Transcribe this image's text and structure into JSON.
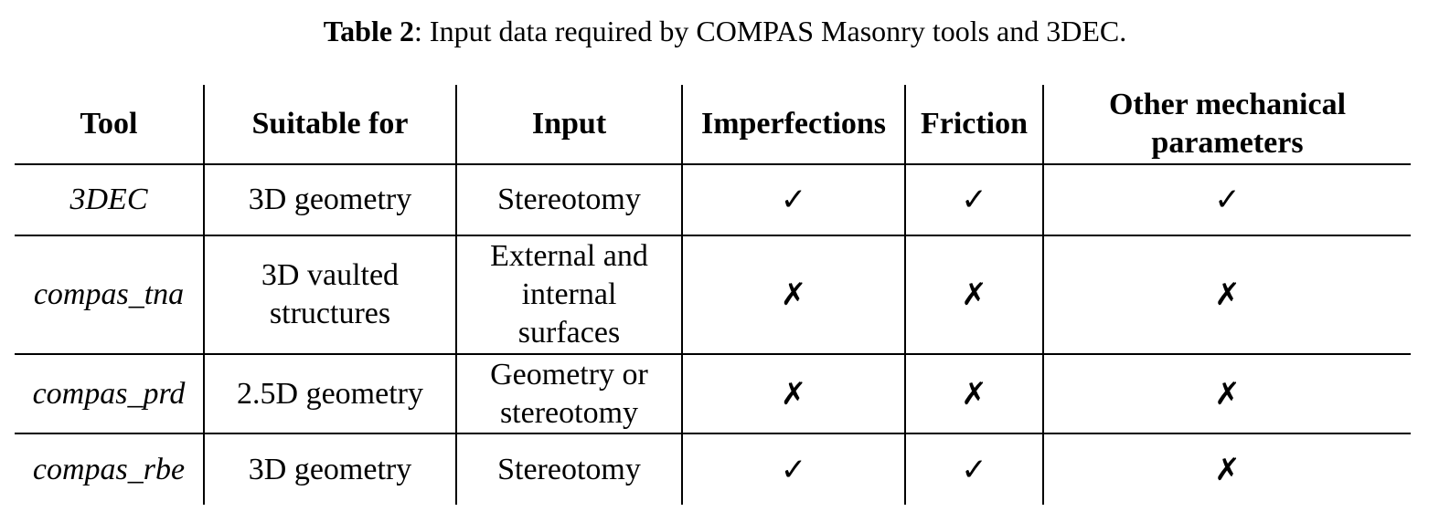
{
  "caption": {
    "label": "Table 2",
    "text": ": Input data required by COMPAS Masonry tools and 3DEC."
  },
  "table": {
    "headers": [
      "Tool",
      "Suitable for",
      "Input",
      "Imperfections",
      "Friction",
      "Other mechanical parameters"
    ],
    "rows": [
      {
        "tool": "3DEC",
        "suitable_for": "3D geometry",
        "input": "Stereotomy",
        "imperfections": "✓",
        "friction": "✓",
        "other": "✓"
      },
      {
        "tool": "compas_tna",
        "suitable_for": "3D vaulted\nstructures",
        "input": "External and\ninternal\nsurfaces",
        "imperfections": "✗",
        "friction": "✗",
        "other": "✗"
      },
      {
        "tool": "compas_prd",
        "suitable_for": "2.5D geometry",
        "input": "Geometry or\nstereotomy",
        "imperfections": "✗",
        "friction": "✗",
        "other": "✗"
      },
      {
        "tool": "compas_rbe",
        "suitable_for": "3D geometry",
        "input": "Stereotomy",
        "imperfections": "✓",
        "friction": "✓",
        "other": "✗"
      }
    ]
  }
}
